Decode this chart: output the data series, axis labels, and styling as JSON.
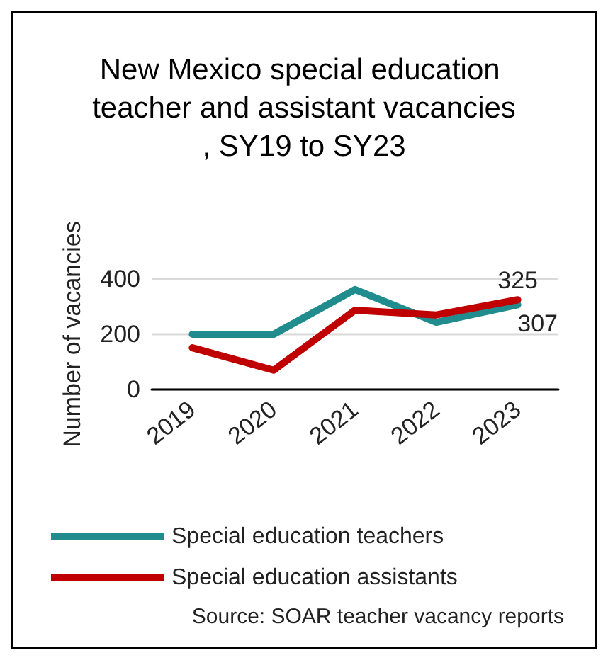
{
  "chart_data": {
    "type": "line",
    "title": "New Mexico special education teacher and assistant vacancies, SY19 to SY23",
    "ylabel": "Number of vacancies",
    "categories": [
      "2019",
      "2020",
      "2021",
      "2022",
      "2023"
    ],
    "series": [
      {
        "name": "Special education teachers",
        "color": "#218c8d",
        "values": [
          200,
          200,
          362,
          243,
          307
        ],
        "value_labels": [
          null,
          null,
          null,
          null,
          "307"
        ]
      },
      {
        "name": "Special education assistants",
        "color": "#c00000",
        "values": [
          151,
          70,
          287,
          270,
          325
        ],
        "value_labels": [
          null,
          null,
          null,
          null,
          "325"
        ]
      }
    ],
    "ylim": [
      0,
      400
    ],
    "yticks": [
      0,
      200,
      400
    ],
    "grid": "y",
    "legend": "bottom",
    "marker": "none",
    "line_style": "solid",
    "annotations": [
      "Source: SOAR teacher vacancy reports"
    ]
  }
}
